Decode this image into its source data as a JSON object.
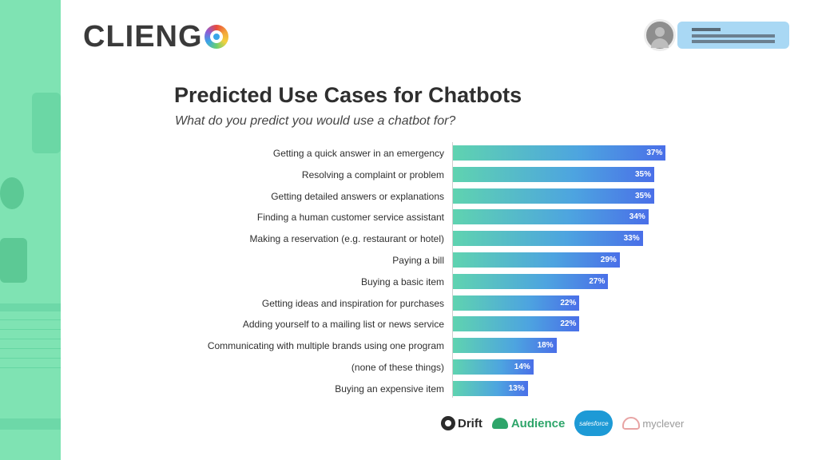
{
  "brand": {
    "logo_text": "CLIENG"
  },
  "chart_data": {
    "type": "bar",
    "orientation": "horizontal",
    "title": "Predicted Use Cases for Chatbots",
    "subtitle": "What do you predict you would use a chatbot for?",
    "xlabel": "",
    "ylabel": "",
    "xlim": [
      0,
      100
    ],
    "grid": false,
    "categories": [
      "Getting a quick answer in an emergency",
      "Resolving a complaint or problem",
      "Getting detailed answers or explanations",
      "Finding a human customer service assistant",
      "Making a reservation (e.g. restaurant or hotel)",
      "Paying a bill",
      "Buying a basic item",
      "Getting ideas and inspiration for purchases",
      "Adding yourself to a mailing list or news service",
      "Communicating with multiple brands using one program",
      "(none of these things)",
      "Buying an expensive item"
    ],
    "values": [
      37,
      35,
      35,
      34,
      33,
      29,
      27,
      22,
      22,
      18,
      14,
      13
    ],
    "value_labels": [
      "37%",
      "35%",
      "35%",
      "34%",
      "33%",
      "29%",
      "27%",
      "22%",
      "22%",
      "18%",
      "14%",
      "13%"
    ],
    "colors": {
      "bar_start": "#5fd3b0",
      "bar_end": "#4a6fe8"
    }
  },
  "sources": {
    "drift": "Drift",
    "audience": "Audience",
    "salesforce": "salesforce",
    "myclever": "myclever"
  }
}
